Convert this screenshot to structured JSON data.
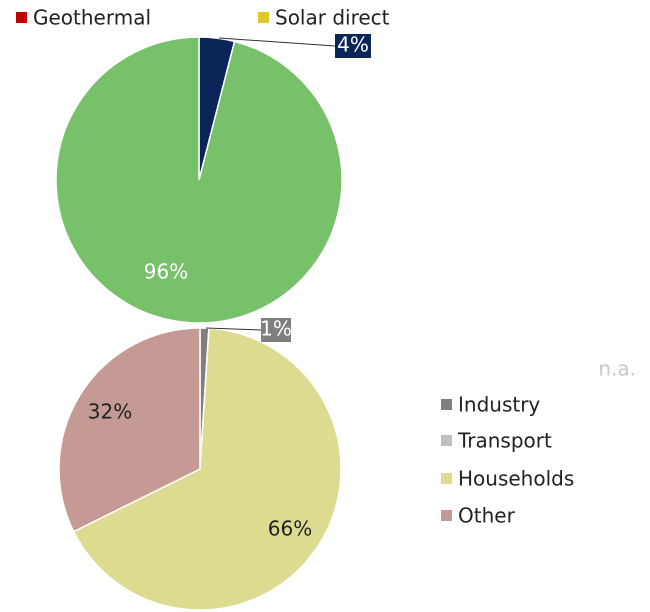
{
  "chart_data": [
    {
      "type": "pie",
      "legend": [
        {
          "name": "Geothermal",
          "color": "#c00000"
        },
        {
          "name": "Solar direct",
          "color": "#e2c62d"
        }
      ],
      "values": [
        4,
        96
      ],
      "value_labels": [
        "4%",
        "96%"
      ],
      "colors": [
        "#0b2558",
        "#78c16b"
      ]
    },
    {
      "type": "pie",
      "categories": [
        "Industry",
        "Transport",
        "Households",
        "Other"
      ],
      "values": [
        1,
        0,
        66,
        32
      ],
      "value_labels": [
        "1%",
        null,
        "66%",
        "32%"
      ],
      "colors": [
        "#7f7f7f",
        "#bfbfbf",
        "#dcdb8f",
        "#c59a94"
      ],
      "annotation": "n.a."
    }
  ]
}
